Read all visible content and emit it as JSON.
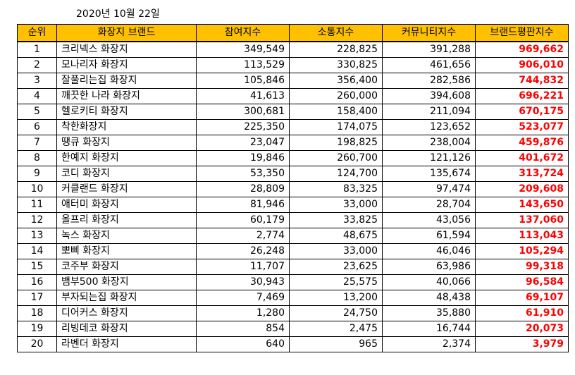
{
  "date": "2020년 10월 22일",
  "colors": {
    "header_bg": "#FFC000",
    "index_text": "#FF0000"
  },
  "table": {
    "headers": [
      "순위",
      "화장지 브랜드",
      "참여지수",
      "소통지수",
      "커뮤니티지수",
      "브랜드평판지수"
    ],
    "rows": [
      {
        "rank": "1",
        "brand": "크리넥스 화장지",
        "participation": "349,549",
        "communication": "228,825",
        "community": "391,288",
        "reputation": "969,662"
      },
      {
        "rank": "2",
        "brand": "모나리자 화장지",
        "participation": "113,529",
        "communication": "330,825",
        "community": "461,656",
        "reputation": "906,010"
      },
      {
        "rank": "3",
        "brand": "잘풀리는집 화장지",
        "participation": "105,846",
        "communication": "356,400",
        "community": "282,586",
        "reputation": "744,832"
      },
      {
        "rank": "4",
        "brand": "깨끗한 나라 화장지",
        "participation": "41,613",
        "communication": "260,000",
        "community": "394,608",
        "reputation": "696,221"
      },
      {
        "rank": "5",
        "brand": "헬로키티 화장지",
        "participation": "300,681",
        "communication": "158,400",
        "community": "211,094",
        "reputation": "670,175"
      },
      {
        "rank": "6",
        "brand": "착한화장지",
        "participation": "225,350",
        "communication": "174,075",
        "community": "123,652",
        "reputation": "523,077"
      },
      {
        "rank": "7",
        "brand": "땡큐 화장지",
        "participation": "23,047",
        "communication": "198,825",
        "community": "238,004",
        "reputation": "459,876"
      },
      {
        "rank": "8",
        "brand": "한예지 화장지",
        "participation": "19,846",
        "communication": "260,700",
        "community": "121,126",
        "reputation": "401,672"
      },
      {
        "rank": "9",
        "brand": "코디 화장지",
        "participation": "53,350",
        "communication": "124,700",
        "community": "135,674",
        "reputation": "313,724"
      },
      {
        "rank": "10",
        "brand": "커클랜드 화장지",
        "participation": "28,809",
        "communication": "83,325",
        "community": "97,474",
        "reputation": "209,608"
      },
      {
        "rank": "11",
        "brand": "애터미 화장지",
        "participation": "81,946",
        "communication": "33,000",
        "community": "28,704",
        "reputation": "143,650"
      },
      {
        "rank": "12",
        "brand": "올프리 화장지",
        "participation": "60,179",
        "communication": "33,825",
        "community": "43,056",
        "reputation": "137,060"
      },
      {
        "rank": "13",
        "brand": "녹스 화장지",
        "participation": "2,774",
        "communication": "48,675",
        "community": "61,594",
        "reputation": "113,043"
      },
      {
        "rank": "14",
        "brand": "뽀삐 화장지",
        "participation": "26,248",
        "communication": "33,000",
        "community": "46,046",
        "reputation": "105,294"
      },
      {
        "rank": "15",
        "brand": "코주부 화장지",
        "participation": "11,707",
        "communication": "23,625",
        "community": "63,986",
        "reputation": "99,318"
      },
      {
        "rank": "16",
        "brand": "뱀부500 화장지",
        "participation": "30,943",
        "communication": "25,575",
        "community": "40,066",
        "reputation": "96,584"
      },
      {
        "rank": "17",
        "brand": "부자되는집 화장지",
        "participation": "7,469",
        "communication": "13,200",
        "community": "48,438",
        "reputation": "69,107"
      },
      {
        "rank": "18",
        "brand": "디어커스 화장지",
        "participation": "1,280",
        "communication": "24,750",
        "community": "35,880",
        "reputation": "61,910"
      },
      {
        "rank": "19",
        "brand": "리빙데코 화장지",
        "participation": "854",
        "communication": "2,475",
        "community": "16,744",
        "reputation": "20,073"
      },
      {
        "rank": "20",
        "brand": "라벤더 화장지",
        "participation": "640",
        "communication": "965",
        "community": "2,374",
        "reputation": "3,979"
      }
    ]
  }
}
